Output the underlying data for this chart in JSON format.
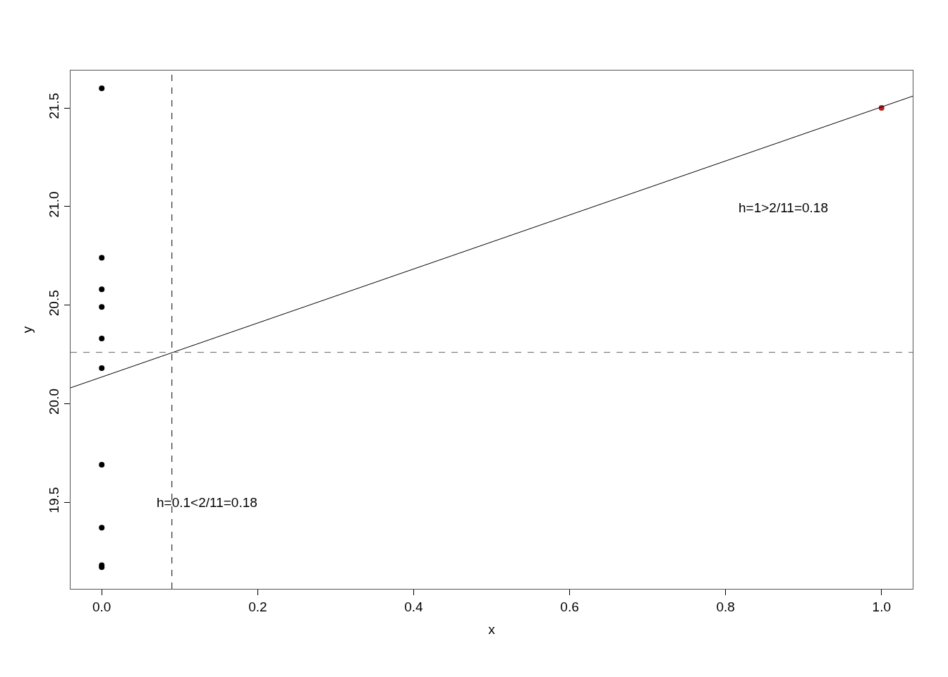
{
  "chart_data": {
    "type": "scatter",
    "xlabel": "x",
    "ylabel": "y",
    "xlim": [
      -0.04,
      1.04
    ],
    "xticks": [
      {
        "value": 0,
        "label": "0.0"
      },
      0.2,
      0.4,
      0.6,
      0.8,
      {
        "value": 1,
        "label": "1.0"
      }
    ],
    "ylim": [
      19.06,
      21.69
    ],
    "yticks": [
      {
        "value": 19.5,
        "label": "19.5"
      },
      {
        "value": 20,
        "label": "20.0"
      },
      {
        "value": 20.5,
        "label": "20.5"
      },
      {
        "value": 21,
        "label": "21.0"
      },
      {
        "value": 21.5,
        "label": "21.5"
      }
    ],
    "marker": "circle",
    "series": [
      {
        "color": "#000000",
        "x": [
          0,
          0,
          0,
          0,
          0,
          0,
          0,
          0,
          0,
          0
        ],
        "values": [
          21.6,
          20.74,
          20.58,
          20.49,
          20.33,
          20.18,
          19.69,
          19.37,
          19.18,
          19.17
        ]
      },
      {
        "color": "#b22222",
        "x": [
          1
        ],
        "values": [
          21.5
        ]
      },
      {
        "type": "line",
        "color": "#000000",
        "x": [
          -0.04,
          1.04
        ],
        "values": [
          20.08,
          21.56
        ],
        "marker": "none",
        "line_style": "solid"
      }
    ],
    "ref_lines": [
      {
        "axis": "x",
        "value": 0.09,
        "color": "#000000",
        "line_style": "dashed"
      },
      {
        "axis": "y",
        "value": 20.26,
        "color": "#666666",
        "line_style": "dashed"
      }
    ],
    "annotations": [
      "h=0.1<2/11=0.18",
      "h=1>2/11=0.18"
    ]
  }
}
